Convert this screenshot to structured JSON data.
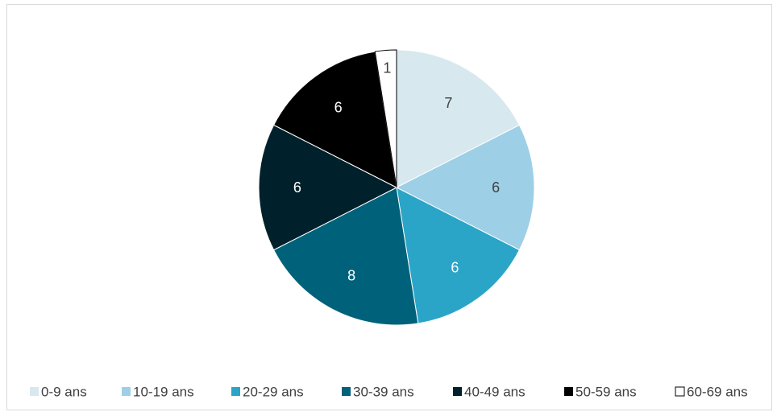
{
  "chart_data": {
    "type": "pie",
    "title": "",
    "categories": [
      "0-9 ans",
      "10-19 ans",
      "20-29 ans",
      "30-39 ans",
      "40-49 ans",
      "50-59 ans",
      "60-69 ans"
    ],
    "values": [
      7,
      6,
      6,
      8,
      6,
      6,
      1
    ],
    "data_labels": [
      "7",
      "6",
      "6",
      "8",
      "6",
      "6",
      "1"
    ],
    "colors": [
      "#d7e8ee",
      "#9dd0e6",
      "#2ba5c7",
      "#00627a",
      "#00212b",
      "#000000",
      "#ffffff"
    ],
    "label_colors": [
      "#404040",
      "#404040",
      "#ffffff",
      "#ffffff",
      "#ffffff",
      "#ffffff",
      "#404040"
    ],
    "legend_position": "bottom",
    "start_angle": "12 o'clock, clockwise"
  }
}
